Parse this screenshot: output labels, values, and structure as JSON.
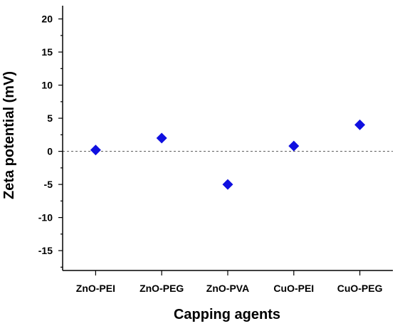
{
  "chart_data": {
    "type": "scatter",
    "title": "",
    "xlabel": "Capping agents",
    "ylabel": "Zeta potential (mV)",
    "categories": [
      "ZnO-PEI",
      "ZnO-PEG",
      "ZnO-PVA",
      "CuO-PEI",
      "CuO-PEG"
    ],
    "series": [
      {
        "values": [
          0.2,
          2.0,
          -5.0,
          0.8,
          4.0
        ]
      }
    ],
    "ylim": [
      -18,
      22
    ],
    "yticks": [
      -15,
      -10,
      -5,
      0,
      5,
      10,
      15,
      20
    ],
    "reference_line": {
      "y": 0,
      "style": "dashed"
    },
    "grid": false,
    "legend": "none",
    "marker": {
      "shape": "diamond",
      "color": "#1010e0"
    },
    "axis_color": "#000000"
  }
}
